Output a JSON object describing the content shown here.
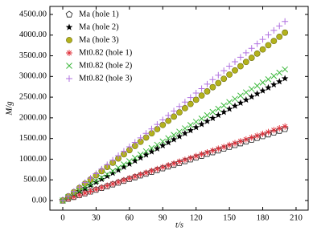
{
  "chart_data": {
    "type": "scatter",
    "xlabel": "t/s",
    "ylabel": "M/g",
    "xlim": [
      -11.6,
      220.9
    ],
    "ylim": [
      -233,
      4694
    ],
    "xticks": [
      0,
      30,
      60,
      90,
      120,
      150,
      180,
      210
    ],
    "yticks": [
      {
        "value": 0,
        "label": "0.00"
      },
      {
        "value": 500,
        "label": "500.00"
      },
      {
        "value": 1000,
        "label": "1000.00"
      },
      {
        "value": 1500,
        "label": "1500.00"
      },
      {
        "value": 2000,
        "label": "2000.00"
      },
      {
        "value": 2500,
        "label": "2500.00"
      },
      {
        "value": 3000,
        "label": "3000.00"
      },
      {
        "value": 3500,
        "label": "3500.00"
      },
      {
        "value": 4000,
        "label": "4000.00"
      },
      {
        "value": 4500,
        "label": "4500.00"
      }
    ],
    "legend": "upper left",
    "x": [
      0,
      5,
      10,
      15,
      20,
      25,
      30,
      35,
      40,
      45,
      50,
      55,
      60,
      65,
      70,
      75,
      80,
      85,
      90,
      95,
      100,
      105,
      110,
      115,
      120,
      125,
      130,
      135,
      140,
      145,
      150,
      155,
      160,
      165,
      170,
      175,
      180,
      185,
      190,
      195,
      200
    ],
    "series": [
      {
        "name": "Ma (hole 1)",
        "color": "#333333",
        "marker": "pentagon",
        "values": [
          0,
          43,
          87,
          130,
          173,
          216,
          260,
          303,
          346,
          389,
          433,
          476,
          519,
          562,
          606,
          649,
          692,
          735,
          779,
          822,
          865,
          908,
          952,
          995,
          1038,
          1081,
          1125,
          1168,
          1211,
          1254,
          1298,
          1341,
          1384,
          1427,
          1471,
          1514,
          1557,
          1600,
          1644,
          1687,
          1730
        ]
      },
      {
        "name": "Ma (hole 2)",
        "color": "#000000",
        "marker": "star",
        "values": [
          0,
          74,
          148,
          221,
          295,
          369,
          443,
          516,
          590,
          664,
          738,
          811,
          885,
          959,
          1033,
          1106,
          1180,
          1254,
          1328,
          1401,
          1475,
          1549,
          1623,
          1696,
          1770,
          1844,
          1918,
          1991,
          2065,
          2139,
          2213,
          2286,
          2360,
          2434,
          2508,
          2581,
          2655,
          2729,
          2803,
          2876,
          2950
        ]
      },
      {
        "name": "Ma (hole 3)",
        "color": "#b3b21c",
        "marker": "circle",
        "values": [
          0,
          102,
          203,
          305,
          406,
          508,
          609,
          711,
          812,
          914,
          1015,
          1117,
          1218,
          1320,
          1421,
          1523,
          1624,
          1726,
          1827,
          1929,
          2030,
          2132,
          2233,
          2335,
          2436,
          2538,
          2639,
          2741,
          2842,
          2944,
          3045,
          3147,
          3248,
          3350,
          3451,
          3553,
          3654,
          3756,
          3857,
          3959,
          4060
        ]
      },
      {
        "name": "Mt0.82 (hole 1)",
        "color": "#e0303a",
        "marker": "asterisk",
        "values": [
          0,
          45,
          90,
          134,
          179,
          224,
          269,
          313,
          358,
          403,
          448,
          492,
          537,
          582,
          627,
          671,
          716,
          761,
          806,
          850,
          895,
          940,
          985,
          1029,
          1074,
          1119,
          1164,
          1208,
          1253,
          1298,
          1343,
          1387,
          1432,
          1477,
          1522,
          1566,
          1611,
          1656,
          1701,
          1745,
          1790
        ]
      },
      {
        "name": "Mt0.82 (hole 2)",
        "color": "#3cb83c",
        "marker": "x",
        "values": [
          0,
          79,
          159,
          238,
          317,
          396,
          476,
          555,
          634,
          713,
          793,
          872,
          951,
          1030,
          1110,
          1189,
          1268,
          1347,
          1427,
          1506,
          1585,
          1664,
          1744,
          1823,
          1902,
          1981,
          2061,
          2140,
          2219,
          2298,
          2378,
          2457,
          2536,
          2615,
          2695,
          2774,
          2853,
          2932,
          3012,
          3091,
          3170
        ]
      },
      {
        "name": "Mt0.82 (hole 3)",
        "color": "#b070e0",
        "marker": "plus",
        "values": [
          0,
          108,
          217,
          325,
          433,
          541,
          650,
          758,
          866,
          974,
          1083,
          1191,
          1299,
          1407,
          1516,
          1624,
          1732,
          1840,
          1949,
          2057,
          2165,
          2273,
          2382,
          2490,
          2598,
          2706,
          2815,
          2923,
          3031,
          3139,
          3248,
          3356,
          3464,
          3572,
          3681,
          3789,
          3897,
          4005,
          4114,
          4222,
          4330
        ]
      }
    ]
  }
}
